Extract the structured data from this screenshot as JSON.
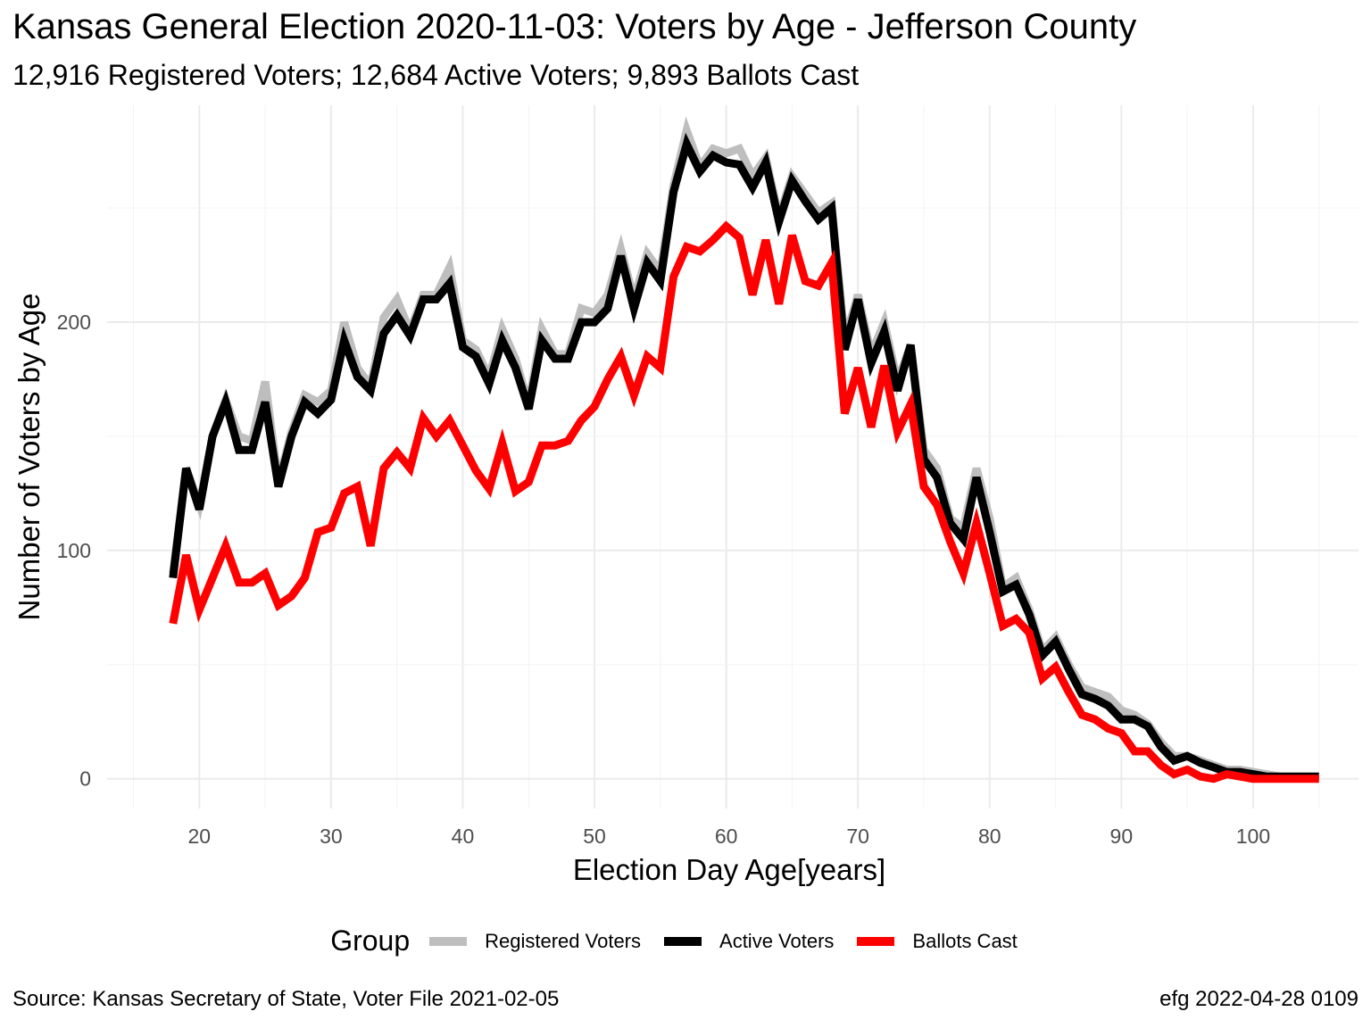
{
  "title": "Kansas General Election 2020-11-03:  Voters by Age - Jefferson County",
  "subtitle": "12,916 Registered Voters; 12,684 Active Voters; 9,893 Ballots Cast",
  "caption_left": "Source:  Kansas Secretary of State, Voter File  2021-02-05",
  "caption_right": "efg 2022-04-28 0109",
  "legend_title": "Group",
  "chart_data": {
    "type": "line",
    "xlabel": "Election Day Age[years]",
    "ylabel": "Number of Voters by Age",
    "xlim": [
      13,
      108
    ],
    "ylim": [
      -13,
      295
    ],
    "x_ticks": [
      20,
      30,
      40,
      50,
      60,
      70,
      80,
      90,
      100
    ],
    "y_ticks": [
      0,
      100,
      200
    ],
    "grid": true,
    "legend_position": "bottom",
    "x": [
      18,
      19,
      20,
      21,
      22,
      23,
      24,
      25,
      26,
      27,
      28,
      29,
      30,
      31,
      32,
      33,
      34,
      35,
      36,
      37,
      38,
      39,
      40,
      41,
      42,
      43,
      44,
      45,
      46,
      47,
      48,
      49,
      50,
      51,
      52,
      53,
      54,
      55,
      56,
      57,
      58,
      59,
      60,
      61,
      62,
      63,
      64,
      65,
      66,
      67,
      68,
      69,
      70,
      71,
      72,
      73,
      74,
      75,
      76,
      77,
      78,
      79,
      80,
      81,
      82,
      83,
      84,
      85,
      86,
      87,
      88,
      89,
      90,
      91,
      92,
      93,
      94,
      95,
      96,
      97,
      98,
      99,
      100,
      101,
      102,
      103,
      104,
      105
    ],
    "series": [
      {
        "name": "Registered Voters",
        "color": "#bebebe",
        "values": [
          90,
          136,
          120,
          150,
          166,
          150,
          148,
          174,
          130,
          152,
          168,
          165,
          170,
          200,
          180,
          172,
          202,
          210,
          196,
          212,
          212,
          224,
          192,
          188,
          176,
          197,
          184,
          164,
          197,
          186,
          186,
          206,
          204,
          212,
          232,
          210,
          230,
          222,
          260,
          284,
          268,
          276,
          274,
          276,
          264,
          272,
          246,
          264,
          256,
          248,
          252,
          192,
          212,
          186,
          200,
          174,
          190,
          144,
          136,
          114,
          110,
          136,
          114,
          84,
          88,
          74,
          56,
          62,
          50,
          40,
          38,
          36,
          30,
          28,
          24,
          16,
          10,
          10,
          8,
          6,
          4,
          4,
          3,
          2,
          1,
          1,
          1,
          1
        ]
      },
      {
        "name": "Active Voters",
        "color": "#000000",
        "values": [
          88,
          136,
          118,
          150,
          165,
          144,
          144,
          165,
          128,
          150,
          165,
          160,
          166,
          192,
          176,
          170,
          195,
          203,
          194,
          210,
          210,
          217,
          189,
          185,
          173,
          192,
          180,
          162,
          192,
          184,
          184,
          200,
          200,
          206,
          229,
          206,
          226,
          218,
          257,
          278,
          266,
          273,
          270,
          269,
          259,
          270,
          244,
          262,
          253,
          245,
          250,
          188,
          210,
          182,
          196,
          170,
          190,
          140,
          132,
          112,
          105,
          132,
          108,
          82,
          85,
          72,
          54,
          60,
          48,
          37,
          35,
          32,
          26,
          26,
          23,
          14,
          8,
          10,
          7,
          5,
          3,
          3,
          2,
          1,
          1,
          1,
          1,
          1
        ]
      },
      {
        "name": "Ballots Cast",
        "color": "#ff0000",
        "values": [
          68,
          98,
          74,
          88,
          102,
          86,
          86,
          90,
          76,
          80,
          88,
          108,
          110,
          125,
          128,
          102,
          136,
          143,
          136,
          158,
          150,
          157,
          146,
          135,
          127,
          147,
          126,
          130,
          146,
          146,
          148,
          157,
          163,
          175,
          185,
          168,
          185,
          180,
          220,
          233,
          231,
          236,
          242,
          237,
          212,
          236,
          208,
          238,
          218,
          216,
          226,
          160,
          180,
          154,
          181,
          152,
          164,
          128,
          120,
          104,
          90,
          112,
          90,
          67,
          70,
          64,
          44,
          49,
          38,
          28,
          26,
          22,
          20,
          12,
          12,
          6,
          2,
          4,
          1,
          0,
          2,
          1,
          0,
          0,
          0,
          0,
          0,
          0
        ]
      }
    ]
  }
}
